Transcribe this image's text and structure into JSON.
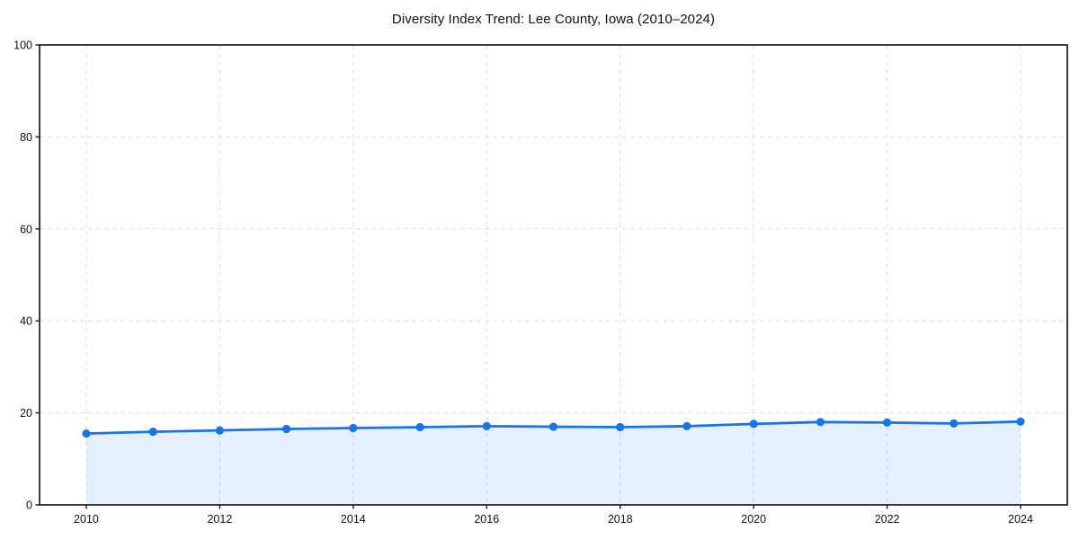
{
  "chart_data": {
    "type": "line",
    "title": "Diversity Index Trend: Lee County, Iowa (2010–2024)",
    "x": [
      2010,
      2011,
      2012,
      2013,
      2014,
      2015,
      2016,
      2017,
      2018,
      2019,
      2020,
      2021,
      2022,
      2023,
      2024
    ],
    "series": [
      {
        "name": "Diversity Index",
        "values": [
          15.5,
          15.9,
          16.2,
          16.5,
          16.7,
          16.9,
          17.1,
          17.0,
          16.9,
          17.1,
          17.6,
          18.0,
          17.9,
          17.7,
          18.1
        ]
      }
    ],
    "xlabel": "",
    "ylabel": "",
    "xlim": [
      2009.3,
      2024.7
    ],
    "ylim": [
      0,
      100
    ],
    "x_ticks": [
      2010,
      2012,
      2014,
      2016,
      2018,
      2020,
      2022,
      2024
    ],
    "y_ticks": [
      0,
      20,
      40,
      60,
      80,
      100
    ],
    "grid": true,
    "grid_style": "dashed",
    "legend_position": "none",
    "line_color": "#1a73e8",
    "fill_color": "rgba(26,115,232,0.11)",
    "grid_color": "#dedede",
    "axis_color": "#1a1a1a",
    "marker": "circle"
  }
}
